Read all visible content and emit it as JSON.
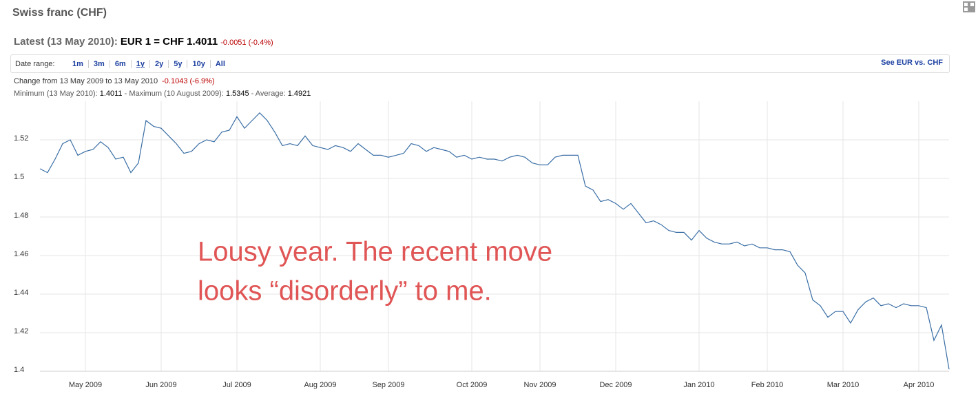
{
  "header": {
    "title": "Swiss franc (CHF)",
    "latest_label": "Latest (13 May 2010):",
    "latest_quote": "EUR 1 = CHF 1.4011",
    "latest_change": "-0.0051 (-0.4%)"
  },
  "toolbar": {
    "label": "Date range:",
    "ranges": [
      "1m",
      "3m",
      "6m",
      "1y",
      "2y",
      "5y",
      "10y",
      "All"
    ],
    "selected": 3,
    "compare_link": "See EUR vs. CHF"
  },
  "summary": {
    "change_label": "Change from 13 May 2009 to 13 May 2010",
    "change_value": "-0.1043 (-6.9%)",
    "stats": [
      {
        "label": "Minimum (13 May 2010):",
        "value": "1.4011"
      },
      {
        "label": "Maximum (10 August 2009):",
        "value": "1.5345"
      },
      {
        "label": "Average:",
        "value": "1.4921"
      }
    ]
  },
  "chart_data": {
    "type": "line",
    "color": "#3a6ea5",
    "grid": true,
    "annotation": [
      "Lousy year. The recent move",
      "looks “disorderly” to me."
    ],
    "categories": [
      null,
      null,
      null,
      null,
      null,
      null,
      "May 2009",
      null,
      null,
      null,
      null,
      null,
      null,
      null,
      null,
      null,
      "Jun 2009",
      null,
      null,
      null,
      null,
      null,
      null,
      null,
      null,
      null,
      "Jul 2009",
      null,
      null,
      null,
      null,
      null,
      null,
      null,
      null,
      null,
      null,
      "Aug 2009",
      null,
      null,
      null,
      null,
      null,
      null,
      null,
      null,
      "Sep 2009",
      null,
      null,
      null,
      null,
      null,
      null,
      null,
      null,
      null,
      null,
      "Oct 2009",
      null,
      null,
      null,
      null,
      null,
      null,
      null,
      null,
      "Nov 2009",
      null,
      null,
      null,
      null,
      null,
      null,
      null,
      null,
      null,
      "Dec 2009",
      null,
      null,
      null,
      null,
      null,
      null,
      null,
      null,
      null,
      null,
      "Jan 2010",
      null,
      null,
      null,
      null,
      null,
      null,
      null,
      null,
      "Feb 2010",
      null,
      null,
      null,
      null,
      null,
      null,
      null,
      null,
      null,
      "Mar 2010",
      null,
      null,
      null,
      null,
      null,
      null,
      null,
      null,
      null,
      "Apr 2010",
      null,
      null,
      null,
      null
    ],
    "values": [
      1.505,
      1.503,
      1.51,
      1.518,
      1.52,
      1.512,
      1.514,
      1.515,
      1.519,
      1.516,
      1.51,
      1.511,
      1.503,
      1.508,
      1.53,
      1.527,
      1.526,
      1.522,
      1.518,
      1.513,
      1.514,
      1.518,
      1.52,
      1.519,
      1.524,
      1.525,
      1.532,
      1.526,
      1.53,
      1.534,
      1.53,
      1.524,
      1.517,
      1.518,
      1.517,
      1.522,
      1.517,
      1.516,
      1.515,
      1.517,
      1.516,
      1.514,
      1.518,
      1.515,
      1.512,
      1.512,
      1.511,
      1.512,
      1.513,
      1.518,
      1.517,
      1.514,
      1.516,
      1.515,
      1.514,
      1.511,
      1.512,
      1.51,
      1.511,
      1.51,
      1.51,
      1.509,
      1.511,
      1.512,
      1.511,
      1.508,
      1.507,
      1.507,
      1.511,
      1.512,
      1.512,
      1.512,
      1.496,
      1.494,
      1.488,
      1.489,
      1.487,
      1.484,
      1.487,
      1.482,
      1.477,
      1.478,
      1.476,
      1.473,
      1.472,
      1.472,
      1.468,
      1.473,
      1.469,
      1.467,
      1.466,
      1.466,
      1.467,
      1.465,
      1.466,
      1.464,
      1.464,
      1.463,
      1.463,
      1.462,
      1.455,
      1.451,
      1.437,
      1.434,
      1.428,
      1.431,
      1.431,
      1.425,
      1.432,
      1.436,
      1.438,
      1.434,
      1.435,
      1.433,
      1.435,
      1.434,
      1.434,
      1.433,
      1.416,
      1.424,
      1.401
    ],
    "ylim": [
      1.4,
      1.54
    ],
    "yticks": [
      1.4,
      1.42,
      1.44,
      1.46,
      1.48,
      1.5,
      1.52
    ]
  }
}
